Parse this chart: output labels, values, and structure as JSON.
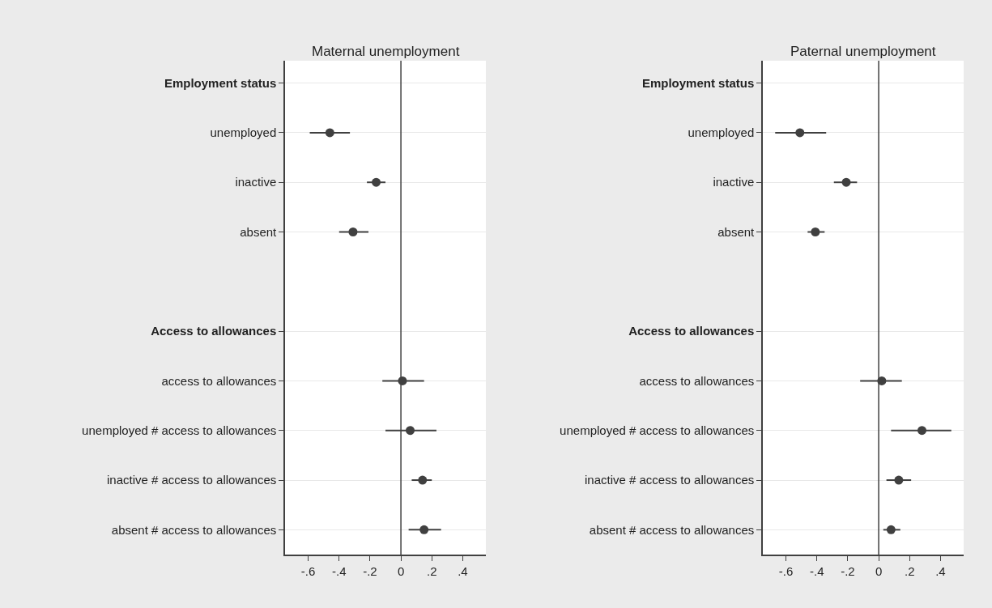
{
  "chart_data": [
    {
      "type": "scatter",
      "orientation": "horizontal",
      "title": "Maternal unemployment",
      "categories": [
        "Employment status",
        "unemployed",
        "inactive",
        "absent",
        null,
        "Access to allowances",
        "access to allowances",
        "unemployed # access to allowances",
        "inactive # access to allowances",
        "absent # access to allowances"
      ],
      "values": [
        null,
        -0.46,
        -0.16,
        -0.31,
        null,
        null,
        0.01,
        0.06,
        0.14,
        0.15
      ],
      "errors": [
        null,
        [
          -0.59,
          -0.33
        ],
        [
          -0.22,
          -0.1
        ],
        [
          -0.4,
          -0.21
        ],
        null,
        null,
        [
          -0.12,
          0.15
        ],
        [
          -0.1,
          0.23
        ],
        [
          0.07,
          0.2
        ],
        [
          0.05,
          0.26
        ]
      ],
      "color": "#404040",
      "marker": "circle",
      "xlim": [
        -0.75,
        0.55
      ],
      "xticks": [
        {
          "value": -0.6,
          "label": "-.6"
        },
        {
          "value": -0.4,
          "label": "-.4"
        },
        {
          "value": -0.2,
          "label": "-.2"
        },
        0,
        {
          "value": 0.2,
          "label": ".2"
        },
        {
          "value": 0.4,
          "label": ".4"
        }
      ],
      "ref_lines": [
        {
          "axis": "x",
          "value": 0,
          "color": "#404040"
        }
      ],
      "grid": "y"
    },
    {
      "type": "scatter",
      "orientation": "horizontal",
      "title": "Paternal unemployment",
      "categories": [
        "Employment status",
        "unemployed",
        "inactive",
        "absent",
        null,
        "Access to allowances",
        "access to allowances",
        "unemployed # access to allowances",
        "inactive # access to allowances",
        "absent # access to allowances"
      ],
      "values": [
        null,
        -0.51,
        -0.21,
        -0.41,
        null,
        null,
        0.02,
        0.28,
        0.13,
        0.08
      ],
      "errors": [
        null,
        [
          -0.67,
          -0.34
        ],
        [
          -0.29,
          -0.14
        ],
        [
          -0.46,
          -0.35
        ],
        null,
        null,
        [
          -0.12,
          0.15
        ],
        [
          0.08,
          0.47
        ],
        [
          0.05,
          0.21
        ],
        [
          0.03,
          0.14
        ]
      ],
      "color": "#404040",
      "marker": "circle",
      "xlim": [
        -0.75,
        0.55
      ],
      "xticks": [
        {
          "value": -0.6,
          "label": "-.6"
        },
        {
          "value": -0.4,
          "label": "-.4"
        },
        {
          "value": -0.2,
          "label": "-.2"
        },
        0,
        {
          "value": 0.2,
          "label": ".2"
        },
        {
          "value": 0.4,
          "label": ".4"
        }
      ],
      "ref_lines": [
        {
          "axis": "x",
          "value": 0,
          "color": "#404040"
        }
      ],
      "grid": "y"
    }
  ]
}
